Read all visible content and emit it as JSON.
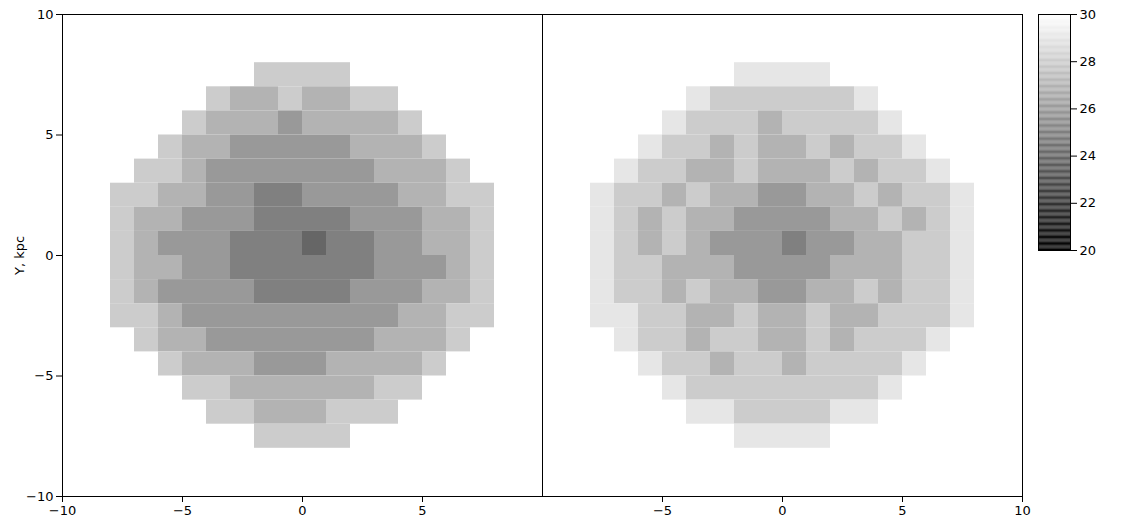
{
  "chart_data": [
    {
      "type": "heatmap",
      "ylabel": "Y, kpc",
      "xlim": [
        -10,
        10
      ],
      "ylim": [
        -10,
        10
      ],
      "xticks": [
        {
          "value": -10,
          "label": "−10"
        },
        {
          "value": -5,
          "label": "−5"
        },
        0,
        5
      ],
      "yticks": [
        {
          "value": -10,
          "label": "−10"
        },
        {
          "value": -5,
          "label": "−5"
        },
        0,
        5,
        10
      ],
      "x": [
        -9.5,
        -8.5,
        -7.5,
        -6.5,
        -5.5,
        -4.5,
        -3.5,
        -2.5,
        -1.5,
        -0.5,
        0.5,
        1.5,
        2.5,
        3.5,
        4.5,
        5.5,
        6.5,
        7.5,
        8.5,
        9.5
      ],
      "y": [
        9.5,
        8.5,
        7.5,
        6.5,
        5.5,
        4.5,
        3.5,
        2.5,
        1.5,
        0.5,
        -0.5,
        -1.5,
        -2.5,
        -3.5,
        -4.5,
        -5.5,
        -6.5,
        -7.5,
        -8.5,
        -9.5
      ],
      "cells": [
        [
          null,
          null,
          null,
          null,
          null,
          null,
          null,
          null,
          null,
          null,
          null,
          null,
          null,
          null,
          null,
          null,
          null,
          null,
          null,
          null
        ],
        [
          null,
          null,
          null,
          null,
          null,
          null,
          null,
          null,
          null,
          null,
          null,
          null,
          null,
          null,
          null,
          null,
          null,
          null,
          null,
          null
        ],
        [
          null,
          null,
          null,
          null,
          null,
          null,
          null,
          null,
          28,
          28,
          28,
          28,
          null,
          null,
          null,
          null,
          null,
          null,
          null,
          null
        ],
        [
          null,
          null,
          null,
          null,
          null,
          null,
          28,
          27,
          27,
          28,
          27,
          27,
          28,
          28,
          null,
          null,
          null,
          null,
          null,
          null
        ],
        [
          null,
          null,
          null,
          null,
          null,
          28,
          27,
          27,
          27,
          26,
          27,
          27,
          27,
          27,
          28,
          null,
          null,
          null,
          null,
          null
        ],
        [
          null,
          null,
          null,
          null,
          28,
          27,
          27,
          26,
          26,
          26,
          26,
          26,
          27,
          27,
          27,
          28,
          null,
          null,
          null,
          null
        ],
        [
          null,
          null,
          null,
          28,
          28,
          27,
          26,
          26,
          26,
          26,
          26,
          26,
          26,
          27,
          27,
          27,
          28,
          null,
          null,
          null
        ],
        [
          null,
          null,
          28,
          28,
          27,
          27,
          26,
          26,
          25,
          25,
          26,
          26,
          26,
          26,
          27,
          27,
          28,
          28,
          null,
          null
        ],
        [
          null,
          null,
          28,
          27,
          27,
          26,
          26,
          26,
          25,
          25,
          25,
          25,
          26,
          26,
          26,
          27,
          27,
          28,
          null,
          null
        ],
        [
          null,
          null,
          28,
          27,
          26,
          26,
          26,
          25,
          25,
          25,
          24,
          25,
          25,
          26,
          26,
          27,
          27,
          28,
          null,
          null
        ],
        [
          null,
          null,
          28,
          27,
          27,
          26,
          26,
          25,
          25,
          25,
          25,
          25,
          25,
          26,
          26,
          26,
          27,
          28,
          null,
          null
        ],
        [
          null,
          null,
          28,
          27,
          26,
          26,
          26,
          26,
          25,
          25,
          25,
          25,
          26,
          26,
          26,
          27,
          27,
          28,
          null,
          null
        ],
        [
          null,
          null,
          28,
          28,
          27,
          26,
          26,
          26,
          26,
          26,
          26,
          26,
          26,
          26,
          27,
          27,
          28,
          28,
          null,
          null
        ],
        [
          null,
          null,
          null,
          28,
          27,
          27,
          26,
          26,
          26,
          26,
          26,
          26,
          26,
          27,
          27,
          27,
          28,
          null,
          null,
          null
        ],
        [
          null,
          null,
          null,
          null,
          28,
          27,
          27,
          27,
          26,
          26,
          26,
          27,
          27,
          27,
          27,
          28,
          null,
          null,
          null,
          null
        ],
        [
          null,
          null,
          null,
          null,
          null,
          28,
          28,
          27,
          27,
          27,
          27,
          27,
          27,
          28,
          28,
          null,
          null,
          null,
          null,
          null
        ],
        [
          null,
          null,
          null,
          null,
          null,
          null,
          28,
          28,
          27,
          27,
          27,
          28,
          28,
          28,
          null,
          null,
          null,
          null,
          null,
          null
        ],
        [
          null,
          null,
          null,
          null,
          null,
          null,
          null,
          null,
          28,
          28,
          28,
          28,
          null,
          null,
          null,
          null,
          null,
          null,
          null,
          null
        ],
        [
          null,
          null,
          null,
          null,
          null,
          null,
          null,
          null,
          null,
          null,
          null,
          null,
          null,
          null,
          null,
          null,
          null,
          null,
          null,
          null
        ],
        [
          null,
          null,
          null,
          null,
          null,
          null,
          null,
          null,
          null,
          null,
          null,
          null,
          null,
          null,
          null,
          null,
          null,
          null,
          null,
          null
        ]
      ]
    },
    {
      "type": "heatmap",
      "tick_labels": "x",
      "xlim": [
        -10,
        10
      ],
      "ylim": [
        -10,
        10
      ],
      "xticks": [
        {
          "value": -5,
          "label": "−5"
        },
        0,
        5,
        10
      ],
      "yticks": [
        -10,
        -5,
        0,
        5,
        10
      ],
      "x": [
        -9.5,
        -8.5,
        -7.5,
        -6.5,
        -5.5,
        -4.5,
        -3.5,
        -2.5,
        -1.5,
        -0.5,
        0.5,
        1.5,
        2.5,
        3.5,
        4.5,
        5.5,
        6.5,
        7.5,
        8.5,
        9.5
      ],
      "y": [
        9.5,
        8.5,
        7.5,
        6.5,
        5.5,
        4.5,
        3.5,
        2.5,
        1.5,
        0.5,
        -0.5,
        -1.5,
        -2.5,
        -3.5,
        -4.5,
        -5.5,
        -6.5,
        -7.5,
        -8.5,
        -9.5
      ],
      "cells": [
        [
          null,
          null,
          null,
          null,
          null,
          null,
          null,
          null,
          null,
          null,
          null,
          null,
          null,
          null,
          null,
          null,
          null,
          null,
          null,
          null
        ],
        [
          null,
          null,
          null,
          null,
          null,
          null,
          null,
          null,
          null,
          null,
          null,
          null,
          null,
          null,
          null,
          null,
          null,
          null,
          null,
          null
        ],
        [
          null,
          null,
          null,
          null,
          null,
          null,
          null,
          null,
          29,
          29,
          29,
          29,
          null,
          null,
          null,
          null,
          null,
          null,
          null,
          null
        ],
        [
          null,
          null,
          null,
          null,
          null,
          null,
          29,
          28,
          28,
          28,
          28,
          28,
          28,
          29,
          null,
          null,
          null,
          null,
          null,
          null
        ],
        [
          null,
          null,
          null,
          null,
          null,
          29,
          28,
          28,
          28,
          27,
          28,
          28,
          28,
          28,
          29,
          null,
          null,
          null,
          null,
          null
        ],
        [
          null,
          null,
          null,
          null,
          29,
          28,
          28,
          27,
          28,
          27,
          27,
          28,
          27,
          28,
          28,
          29,
          null,
          null,
          null,
          null
        ],
        [
          null,
          null,
          null,
          29,
          28,
          28,
          27,
          27,
          28,
          27,
          27,
          27,
          28,
          27,
          28,
          28,
          29,
          null,
          null,
          null
        ],
        [
          null,
          null,
          29,
          28,
          28,
          27,
          28,
          27,
          27,
          26,
          26,
          27,
          27,
          28,
          27,
          28,
          28,
          29,
          null,
          null
        ],
        [
          null,
          null,
          29,
          28,
          27,
          28,
          27,
          27,
          26,
          26,
          26,
          26,
          27,
          27,
          28,
          27,
          28,
          29,
          null,
          null
        ],
        [
          null,
          null,
          29,
          28,
          27,
          28,
          27,
          26,
          26,
          26,
          25,
          26,
          26,
          27,
          27,
          28,
          28,
          29,
          null,
          null
        ],
        [
          null,
          null,
          29,
          28,
          28,
          27,
          27,
          27,
          26,
          26,
          26,
          26,
          27,
          27,
          27,
          28,
          28,
          29,
          null,
          null
        ],
        [
          null,
          null,
          29,
          28,
          28,
          27,
          28,
          27,
          27,
          26,
          26,
          27,
          27,
          28,
          27,
          28,
          28,
          29,
          null,
          null
        ],
        [
          null,
          null,
          29,
          29,
          28,
          28,
          27,
          27,
          28,
          27,
          27,
          28,
          27,
          27,
          28,
          28,
          28,
          29,
          null,
          null
        ],
        [
          null,
          null,
          null,
          29,
          28,
          28,
          27,
          28,
          28,
          27,
          27,
          28,
          27,
          28,
          28,
          28,
          29,
          null,
          null,
          null
        ],
        [
          null,
          null,
          null,
          null,
          29,
          28,
          28,
          27,
          28,
          28,
          27,
          28,
          28,
          28,
          28,
          29,
          null,
          null,
          null,
          null
        ],
        [
          null,
          null,
          null,
          null,
          null,
          29,
          28,
          28,
          28,
          28,
          28,
          28,
          28,
          28,
          29,
          null,
          null,
          null,
          null,
          null
        ],
        [
          null,
          null,
          null,
          null,
          null,
          null,
          29,
          29,
          28,
          28,
          28,
          28,
          29,
          29,
          null,
          null,
          null,
          null,
          null,
          null
        ],
        [
          null,
          null,
          null,
          null,
          null,
          null,
          null,
          null,
          29,
          29,
          29,
          29,
          null,
          null,
          null,
          null,
          null,
          null,
          null,
          null
        ],
        [
          null,
          null,
          null,
          null,
          null,
          null,
          null,
          null,
          null,
          null,
          null,
          null,
          null,
          null,
          null,
          null,
          null,
          null,
          null,
          null
        ],
        [
          null,
          null,
          null,
          null,
          null,
          null,
          null,
          null,
          null,
          null,
          null,
          null,
          null,
          null,
          null,
          null,
          null,
          null,
          null,
          null
        ]
      ],
      "colorbar": {
        "range": [
          20,
          30
        ],
        "ticks": [
          20,
          22,
          24,
          26,
          28,
          30
        ]
      }
    }
  ]
}
